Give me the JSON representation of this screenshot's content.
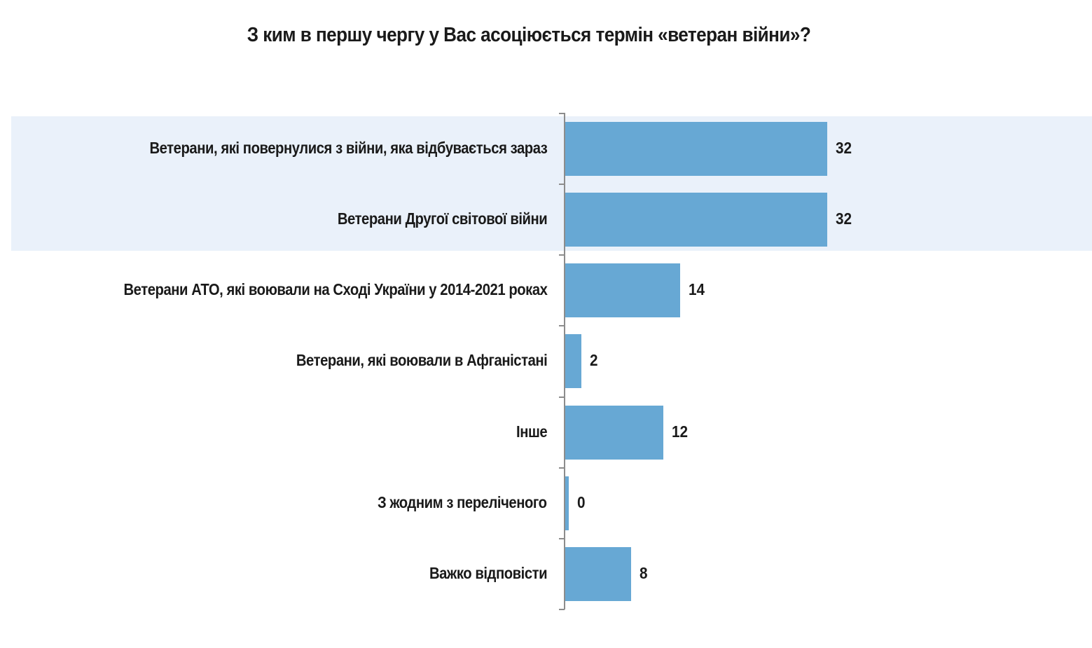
{
  "chart_data": {
    "type": "bar",
    "orientation": "horizontal",
    "title": "З ким в першу чергу у Вас асоціюється термін «ветеран війни»?",
    "xlabel": "",
    "ylabel": "",
    "categories": [
      "Ветерани, які повернулися з війни, яка відбувається зараз",
      "Ветерани Другої світової війни",
      "Ветерани АТО, які воювали на Сході України у 2014-2021 роках",
      "Ветерани, які воювали в Афганістані",
      "Інше",
      "З жодним з переліченого",
      "Важко відповісти"
    ],
    "values": [
      32,
      32,
      14,
      2,
      12,
      0,
      8
    ],
    "value_labels": [
      "32",
      "32",
      "14",
      "2",
      "12",
      "0",
      "8"
    ],
    "highlighted_categories": [
      0,
      1
    ],
    "xlim": [
      0,
      32
    ],
    "grid": false,
    "legend": null,
    "colors": {
      "bar": "#67a8d4",
      "highlight_band": "#eaf1fa",
      "axis": "#8c8c8c",
      "text": "#1a1a1a"
    }
  }
}
